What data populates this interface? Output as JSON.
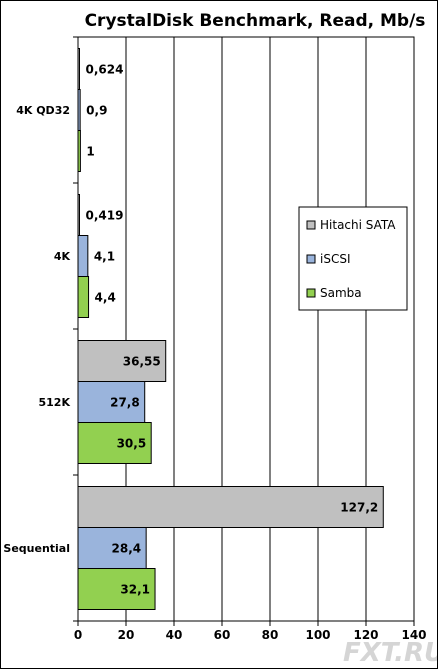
{
  "chart_data": {
    "type": "bar",
    "orientation": "horizontal",
    "title": "CrystalDisk Benchmark, Read, Mb/s",
    "categories": [
      "4K QD32",
      "4K",
      "512K",
      "Sequential"
    ],
    "series": [
      {
        "name": "Hitachi SATA",
        "color": "#c0c0c0",
        "values": [
          0.624,
          0.419,
          36.55,
          127.2
        ],
        "labels": [
          "0,624",
          "0,419",
          "36,55",
          "127,2"
        ]
      },
      {
        "name": "iSCSI",
        "color": "#9ab4dc",
        "values": [
          0.9,
          4.1,
          27.8,
          28.4
        ],
        "labels": [
          "0,9",
          "4,1",
          "27,8",
          "28,4"
        ]
      },
      {
        "name": "Samba",
        "color": "#92d050",
        "values": [
          1,
          4.4,
          30.5,
          32.1
        ],
        "labels": [
          "1",
          "4,4",
          "30,5",
          "32,1"
        ]
      }
    ],
    "xlim": [
      0,
      140
    ],
    "xticks": [
      0,
      20,
      40,
      60,
      80,
      100,
      120,
      140
    ],
    "grid": true,
    "legend_position": "right-middle"
  },
  "watermark": "FXT.RU"
}
